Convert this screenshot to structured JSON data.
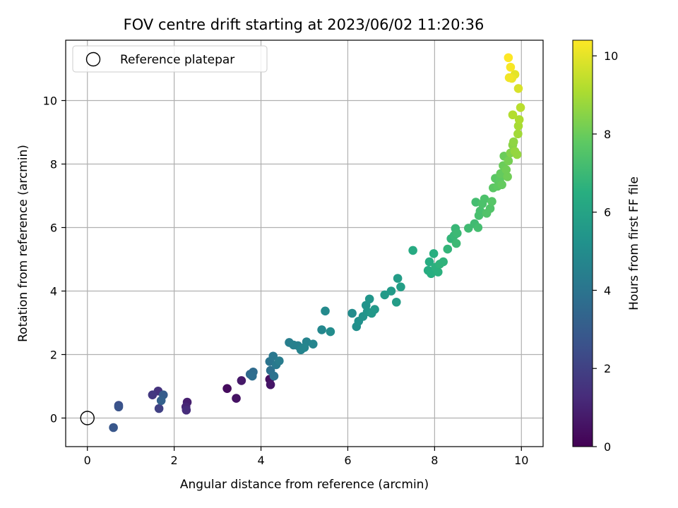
{
  "chart_data": {
    "type": "scatter",
    "title": "FOV centre drift starting at 2023/06/02 11:20:36",
    "xlabel": "Angular distance from reference (arcmin)",
    "ylabel": "Rotation from reference (arcmin)",
    "xlim": [
      -0.5,
      10.5
    ],
    "ylim": [
      -0.9,
      11.9
    ],
    "xticks": [
      "0",
      "2",
      "4",
      "6",
      "8",
      "10"
    ],
    "yticks": [
      "0",
      "2",
      "4",
      "6",
      "8",
      "10"
    ],
    "grid": true,
    "legend": {
      "placement": "top-left",
      "entries": [
        "Reference platepar"
      ]
    },
    "reference_point": {
      "x": 0,
      "y": 0
    },
    "colorbar": {
      "label": "Hours from first FF file",
      "range": [
        0,
        10.4
      ],
      "ticks": [
        "0",
        "2",
        "4",
        "6",
        "8",
        "10"
      ],
      "colormap": "viridis"
    },
    "points": [
      {
        "x": 3.22,
        "y": 0.93,
        "c": 0.3
      },
      {
        "x": 3.43,
        "y": 0.62,
        "c": 0.5
      },
      {
        "x": 3.55,
        "y": 1.18,
        "c": 0.7
      },
      {
        "x": 4.2,
        "y": 1.22,
        "c": 0.4
      },
      {
        "x": 4.22,
        "y": 1.05,
        "c": 0.6
      },
      {
        "x": 2.3,
        "y": 0.5,
        "c": 0.9
      },
      {
        "x": 2.27,
        "y": 0.35,
        "c": 1.1
      },
      {
        "x": 2.28,
        "y": 0.25,
        "c": 1.3
      },
      {
        "x": 1.63,
        "y": 0.85,
        "c": 1.5
      },
      {
        "x": 1.5,
        "y": 0.73,
        "c": 1.7
      },
      {
        "x": 1.65,
        "y": 0.3,
        "c": 2.0
      },
      {
        "x": 0.72,
        "y": 0.4,
        "c": 2.5
      },
      {
        "x": 0.72,
        "y": 0.35,
        "c": 2.7
      },
      {
        "x": 0.6,
        "y": -0.3,
        "c": 2.8
      },
      {
        "x": 1.75,
        "y": 0.73,
        "c": 3.0
      },
      {
        "x": 1.7,
        "y": 0.55,
        "c": 3.2
      },
      {
        "x": 3.75,
        "y": 1.38,
        "c": 3.5
      },
      {
        "x": 3.82,
        "y": 1.45,
        "c": 3.6
      },
      {
        "x": 3.8,
        "y": 1.32,
        "c": 3.7
      },
      {
        "x": 4.22,
        "y": 1.5,
        "c": 3.8
      },
      {
        "x": 4.3,
        "y": 1.32,
        "c": 3.9
      },
      {
        "x": 4.2,
        "y": 1.78,
        "c": 4.0
      },
      {
        "x": 4.28,
        "y": 1.95,
        "c": 4.1
      },
      {
        "x": 4.35,
        "y": 1.68,
        "c": 4.2
      },
      {
        "x": 4.42,
        "y": 1.8,
        "c": 4.3
      },
      {
        "x": 4.65,
        "y": 2.38,
        "c": 4.4
      },
      {
        "x": 4.75,
        "y": 2.3,
        "c": 4.5
      },
      {
        "x": 4.85,
        "y": 2.28,
        "c": 4.5
      },
      {
        "x": 4.92,
        "y": 2.15,
        "c": 4.6
      },
      {
        "x": 5.05,
        "y": 2.4,
        "c": 4.6
      },
      {
        "x": 5.0,
        "y": 2.22,
        "c": 4.7
      },
      {
        "x": 5.2,
        "y": 2.33,
        "c": 4.7
      },
      {
        "x": 5.4,
        "y": 2.78,
        "c": 4.8
      },
      {
        "x": 5.48,
        "y": 3.37,
        "c": 4.9
      },
      {
        "x": 5.6,
        "y": 2.72,
        "c": 5.0
      },
      {
        "x": 6.1,
        "y": 3.3,
        "c": 5.0
      },
      {
        "x": 6.2,
        "y": 2.88,
        "c": 5.1
      },
      {
        "x": 6.25,
        "y": 3.05,
        "c": 5.2
      },
      {
        "x": 6.35,
        "y": 3.2,
        "c": 5.3
      },
      {
        "x": 6.42,
        "y": 3.55,
        "c": 5.3
      },
      {
        "x": 6.45,
        "y": 3.35,
        "c": 5.4
      },
      {
        "x": 6.5,
        "y": 3.75,
        "c": 5.4
      },
      {
        "x": 6.55,
        "y": 3.3,
        "c": 5.5
      },
      {
        "x": 6.62,
        "y": 3.42,
        "c": 5.5
      },
      {
        "x": 6.85,
        "y": 3.88,
        "c": 5.6
      },
      {
        "x": 7.0,
        "y": 4.0,
        "c": 5.6
      },
      {
        "x": 7.12,
        "y": 3.65,
        "c": 5.7
      },
      {
        "x": 7.15,
        "y": 4.4,
        "c": 5.7
      },
      {
        "x": 7.22,
        "y": 4.13,
        "c": 5.8
      },
      {
        "x": 7.5,
        "y": 5.28,
        "c": 6.3
      },
      {
        "x": 7.85,
        "y": 4.65,
        "c": 6.4
      },
      {
        "x": 7.88,
        "y": 4.92,
        "c": 6.4
      },
      {
        "x": 7.92,
        "y": 4.55,
        "c": 6.5
      },
      {
        "x": 7.98,
        "y": 5.18,
        "c": 6.5
      },
      {
        "x": 8.02,
        "y": 4.75,
        "c": 6.6
      },
      {
        "x": 8.08,
        "y": 4.6,
        "c": 6.6
      },
      {
        "x": 8.12,
        "y": 4.85,
        "c": 6.7
      },
      {
        "x": 8.2,
        "y": 4.92,
        "c": 6.7
      },
      {
        "x": 8.3,
        "y": 5.32,
        "c": 6.8
      },
      {
        "x": 8.38,
        "y": 5.65,
        "c": 6.8
      },
      {
        "x": 8.45,
        "y": 5.75,
        "c": 6.9
      },
      {
        "x": 8.48,
        "y": 5.97,
        "c": 6.9
      },
      {
        "x": 8.5,
        "y": 5.5,
        "c": 7.0
      },
      {
        "x": 8.52,
        "y": 5.82,
        "c": 7.0
      },
      {
        "x": 8.78,
        "y": 5.98,
        "c": 7.1
      },
      {
        "x": 8.92,
        "y": 6.12,
        "c": 7.1
      },
      {
        "x": 8.95,
        "y": 6.8,
        "c": 7.2
      },
      {
        "x": 9.0,
        "y": 6.0,
        "c": 7.2
      },
      {
        "x": 9.02,
        "y": 6.38,
        "c": 7.3
      },
      {
        "x": 9.05,
        "y": 6.52,
        "c": 7.3
      },
      {
        "x": 9.1,
        "y": 6.75,
        "c": 7.4
      },
      {
        "x": 9.15,
        "y": 6.9,
        "c": 7.4
      },
      {
        "x": 9.2,
        "y": 6.45,
        "c": 7.5
      },
      {
        "x": 9.28,
        "y": 6.6,
        "c": 7.5
      },
      {
        "x": 9.32,
        "y": 6.82,
        "c": 7.6
      },
      {
        "x": 9.35,
        "y": 7.25,
        "c": 7.7
      },
      {
        "x": 9.4,
        "y": 7.55,
        "c": 7.7
      },
      {
        "x": 9.45,
        "y": 7.3,
        "c": 7.8
      },
      {
        "x": 9.5,
        "y": 7.5,
        "c": 7.8
      },
      {
        "x": 9.52,
        "y": 7.7,
        "c": 7.9
      },
      {
        "x": 9.55,
        "y": 7.35,
        "c": 7.9
      },
      {
        "x": 9.58,
        "y": 7.95,
        "c": 8.0
      },
      {
        "x": 9.6,
        "y": 8.25,
        "c": 8.0
      },
      {
        "x": 9.65,
        "y": 7.82,
        "c": 8.1
      },
      {
        "x": 9.68,
        "y": 7.6,
        "c": 8.1
      },
      {
        "x": 9.7,
        "y": 8.1,
        "c": 8.2
      },
      {
        "x": 9.75,
        "y": 8.35,
        "c": 8.4
      },
      {
        "x": 9.8,
        "y": 8.6,
        "c": 8.5
      },
      {
        "x": 9.82,
        "y": 8.7,
        "c": 8.6
      },
      {
        "x": 9.85,
        "y": 8.4,
        "c": 8.7
      },
      {
        "x": 9.9,
        "y": 8.3,
        "c": 8.7
      },
      {
        "x": 9.92,
        "y": 8.95,
        "c": 8.9
      },
      {
        "x": 9.93,
        "y": 9.2,
        "c": 9.0
      },
      {
        "x": 9.95,
        "y": 9.4,
        "c": 9.1
      },
      {
        "x": 9.8,
        "y": 9.55,
        "c": 9.2
      },
      {
        "x": 9.98,
        "y": 9.78,
        "c": 9.3
      },
      {
        "x": 9.93,
        "y": 10.38,
        "c": 9.8
      },
      {
        "x": 9.85,
        "y": 10.82,
        "c": 10.0
      },
      {
        "x": 9.78,
        "y": 10.7,
        "c": 10.1
      },
      {
        "x": 9.72,
        "y": 10.72,
        "c": 10.2
      },
      {
        "x": 9.75,
        "y": 11.05,
        "c": 10.3
      },
      {
        "x": 9.7,
        "y": 11.35,
        "c": 10.4
      }
    ]
  }
}
